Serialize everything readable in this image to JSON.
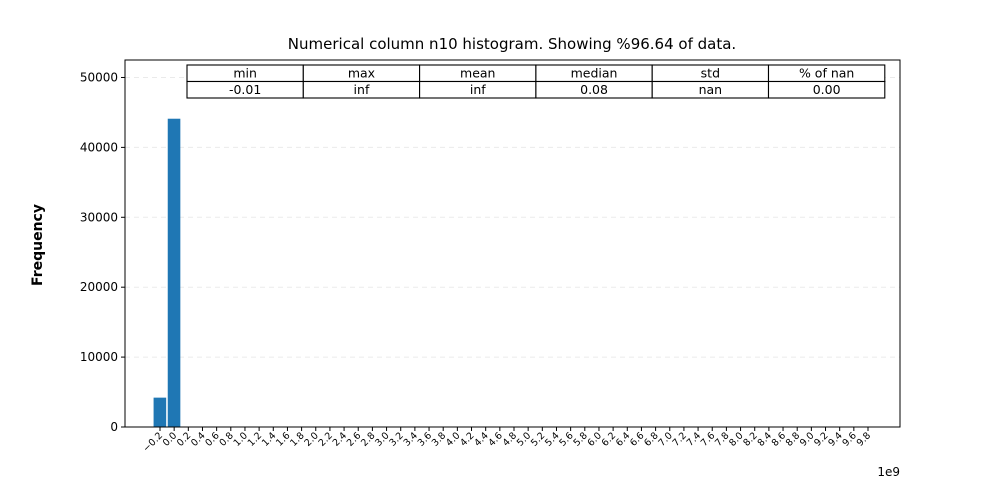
{
  "chart_data": {
    "type": "bar",
    "title": "Numerical column n10 histogram. Showing %96.64 of data.",
    "xlabel": "",
    "ylabel": "Frequency",
    "x_offset_label": "1e9",
    "ylim": [
      0,
      52500
    ],
    "yticks": [
      0,
      10000,
      20000,
      30000,
      40000,
      50000
    ],
    "grid": "y-dashed",
    "xtick_labels": [
      "−0.2",
      "0.0",
      "0.2",
      "0.4",
      "0.6",
      "0.8",
      "1.0",
      "1.2",
      "1.4",
      "1.6",
      "1.8",
      "2.0",
      "2.2",
      "2.4",
      "2.6",
      "2.8",
      "3.0",
      "3.2",
      "3.4",
      "3.6",
      "3.8",
      "4.0",
      "4.2",
      "4.4",
      "4.6",
      "4.8",
      "5.0",
      "5.2",
      "5.4",
      "5.6",
      "5.8",
      "6.0",
      "6.2",
      "6.4",
      "6.6",
      "6.8",
      "7.0",
      "7.2",
      "7.4",
      "7.6",
      "7.8",
      "8.0",
      "8.2",
      "8.4",
      "8.6",
      "8.8",
      "9.0",
      "9.2",
      "9.4",
      "9.6",
      "9.8"
    ],
    "values": [
      4200,
      44100,
      0,
      0,
      0,
      0,
      0,
      0,
      0,
      0,
      0,
      0,
      0,
      0,
      0,
      0,
      0,
      0,
      0,
      0,
      0,
      0,
      0,
      0,
      0,
      0,
      0,
      0,
      0,
      0,
      0,
      0,
      0,
      0,
      0,
      0,
      0,
      0,
      0,
      0,
      0,
      0,
      0,
      0,
      0,
      0,
      0,
      0,
      0,
      0,
      0
    ],
    "bar_color": "#1f77b4",
    "stats_table": {
      "headers": [
        "min",
        "max",
        "mean",
        "median",
        "std",
        "% of nan"
      ],
      "values": [
        "-0.01",
        "inf",
        "inf",
        "0.08",
        "nan",
        "0.00"
      ]
    }
  }
}
